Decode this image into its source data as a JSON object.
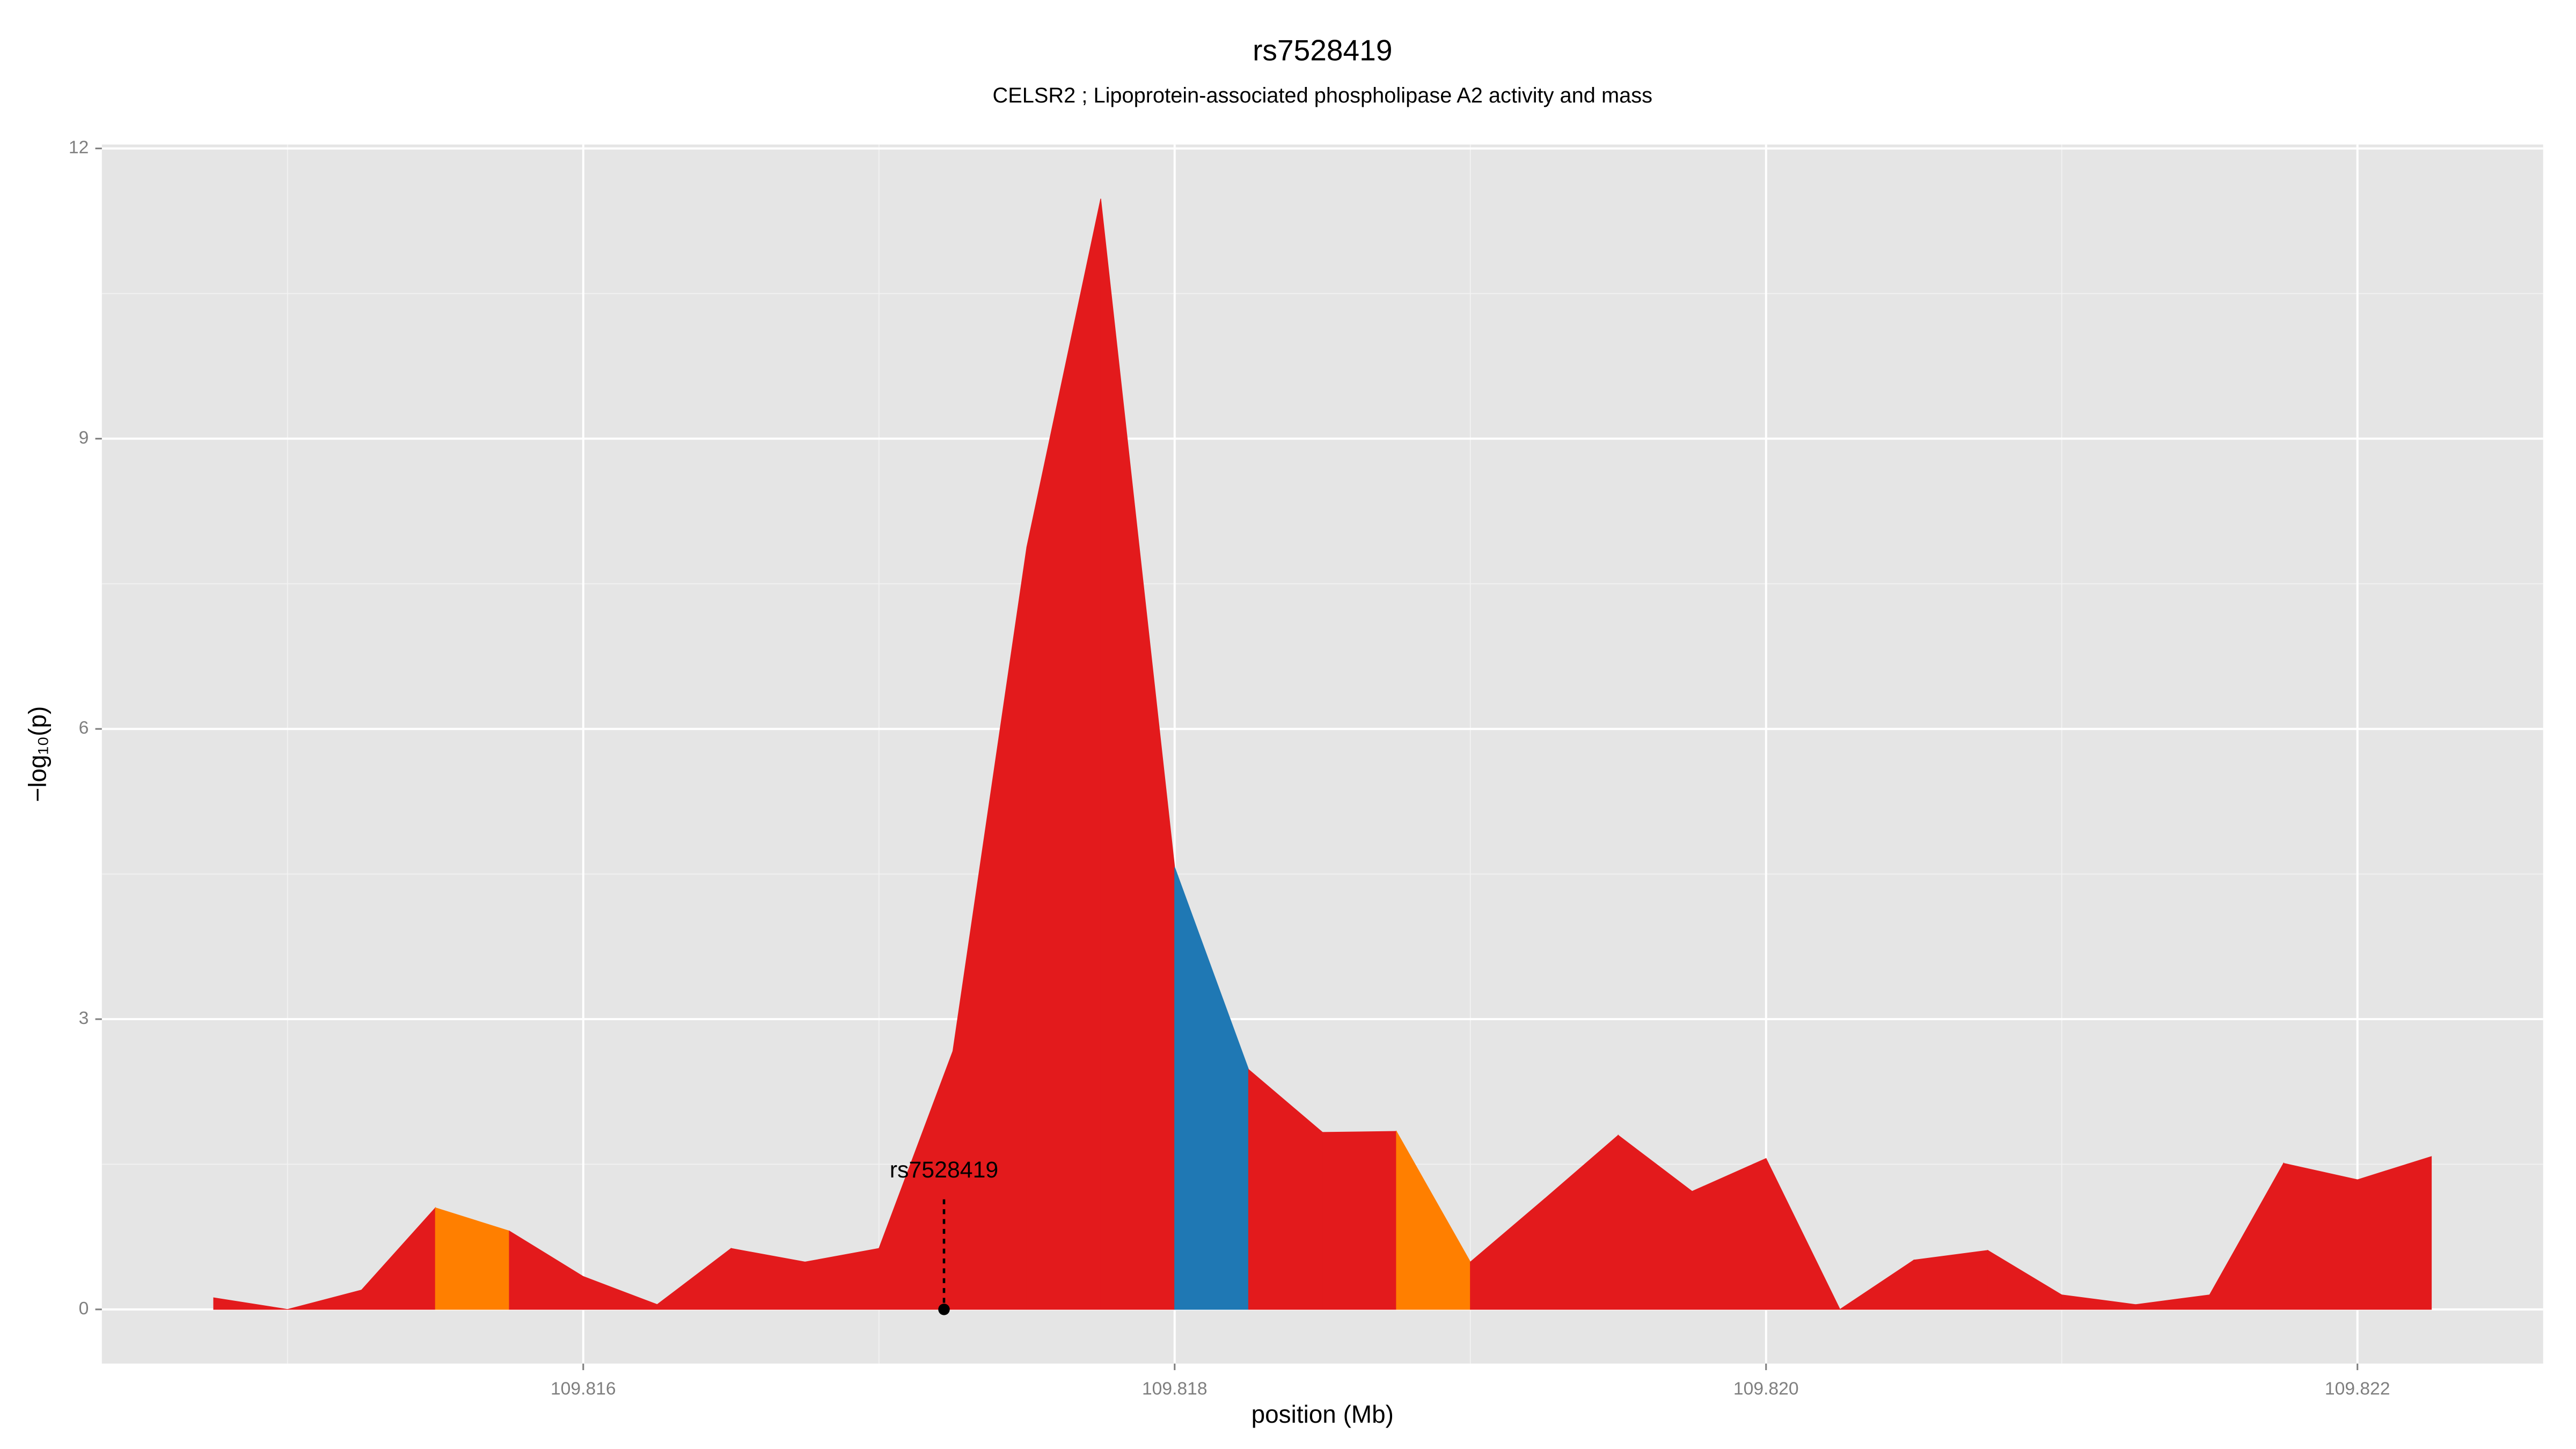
{
  "chart_data": {
    "type": "area",
    "title": "rs7528419",
    "subtitle": "CELSR2 ; Lipoprotein-associated phospholipase A2 activity and mass",
    "x_label": "position (Mb)",
    "y_label": "−log₁₀(p)",
    "x": [
      109.81475,
      109.815,
      109.81525,
      109.8155,
      109.81575,
      109.816,
      109.81625,
      109.8165,
      109.81675,
      109.817,
      109.81725,
      109.8175,
      109.81775,
      109.818,
      109.81825,
      109.8185,
      109.81875,
      109.819,
      109.81925,
      109.8195,
      109.81975,
      109.82,
      109.82025,
      109.8205,
      109.82075,
      109.821,
      109.82125,
      109.8215,
      109.82175,
      109.822,
      109.82225
    ],
    "values": [
      0.12,
      0.0,
      0.2,
      1.05,
      0.81,
      0.34,
      0.05,
      0.63,
      0.49,
      0.63,
      2.67,
      7.88,
      11.48,
      4.57,
      2.48,
      1.83,
      1.84,
      0.49,
      1.14,
      1.8,
      1.22,
      1.56,
      0.0,
      0.51,
      0.61,
      0.15,
      0.05,
      0.15,
      1.51,
      1.34,
      1.58
    ],
    "colors": [
      "#e31a1c",
      "#e31a1c",
      "#e31a1c",
      "#ff7f00",
      "#e31a1c",
      "#e31a1c",
      "#e31a1c",
      "#e31a1c",
      "#e31a1c",
      "#e31a1c",
      "#e31a1c",
      "#e31a1c",
      "#e31a1c",
      "#1f78b4",
      "#e31a1c",
      "#e31a1c",
      "#ff7f00",
      "#e31a1c",
      "#e31a1c",
      "#e31a1c",
      "#e31a1c",
      "#e31a1c",
      "#e31a1c",
      "#e31a1c",
      "#e31a1c",
      "#e31a1c",
      "#e31a1c",
      "#e31a1c",
      "#e31a1c",
      "#e31a1c",
      "#e31a1c"
    ],
    "annotation": {
      "label": "rs7528419",
      "x": 109.81722,
      "y": 0
    },
    "xlim": [
      109.814372,
      109.822628
    ],
    "ylim": [
      -0.56,
      12.04
    ],
    "xticks": [
      {
        "value": 109.816,
        "label": "109.816"
      },
      {
        "value": 109.818,
        "label": "109.818"
      },
      {
        "value": 109.82,
        "label": "109.820"
      },
      {
        "value": 109.822,
        "label": "109.822"
      }
    ],
    "yticks": [
      0,
      3,
      6,
      9,
      12
    ],
    "grid": true
  }
}
